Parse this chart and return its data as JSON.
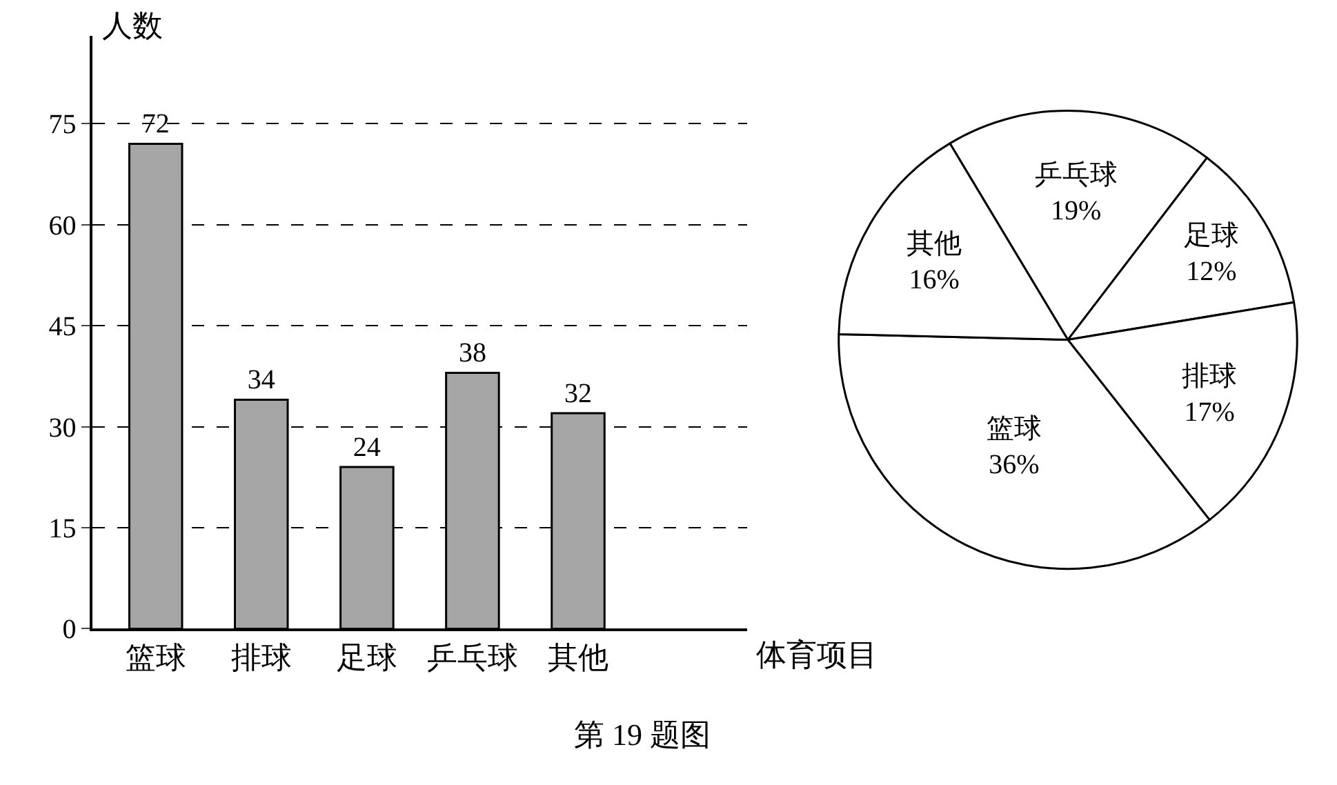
{
  "chart_data": [
    {
      "type": "bar",
      "xlabel": "体育项目",
      "ylabel": "人数",
      "categories": [
        "篮球",
        "排球",
        "足球",
        "乒乓球",
        "其他"
      ],
      "values": [
        72,
        34,
        24,
        38,
        32
      ],
      "color": "#a6a6a6",
      "ylim": [
        0,
        88
      ],
      "yticks": [
        0,
        15,
        30,
        45,
        60,
        75
      ],
      "grid": "y",
      "data_labels": true,
      "annotations": [
        "第 19 题图"
      ]
    },
    {
      "type": "pie",
      "categories": [
        "乒乓球",
        "足球",
        "排球",
        "篮球",
        "其他"
      ],
      "values": [
        19,
        12,
        17,
        36,
        16
      ],
      "colors": [
        "#ffffff",
        "#ffffff",
        "#ffffff",
        "#ffffff",
        "#ffffff"
      ],
      "value_labels": [
        "19%",
        "12%",
        "17%",
        "36%",
        "16%"
      ]
    }
  ]
}
